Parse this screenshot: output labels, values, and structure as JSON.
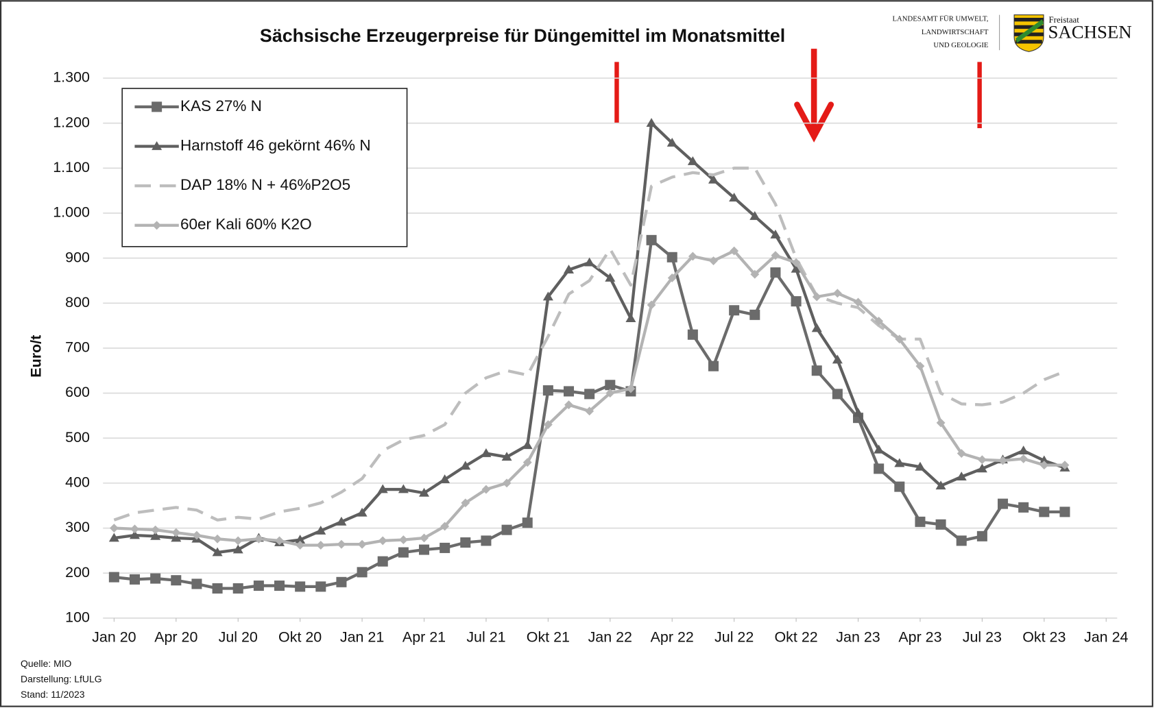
{
  "chart_data": {
    "type": "line",
    "title": "Sächsische Erzeugerpreise für Düngemittel im Monatsmittel",
    "y_label": "Euro/t",
    "x": [
      "2020-01",
      "2020-02",
      "2020-03",
      "2020-04",
      "2020-05",
      "2020-06",
      "2020-07",
      "2020-08",
      "2020-09",
      "2020-10",
      "2020-11",
      "2020-12",
      "2021-01",
      "2021-02",
      "2021-03",
      "2021-04",
      "2021-05",
      "2021-06",
      "2021-07",
      "2021-08",
      "2021-09",
      "2021-10",
      "2021-11",
      "2021-12",
      "2022-01",
      "2022-02",
      "2022-03",
      "2022-04",
      "2022-05",
      "2022-06",
      "2022-07",
      "2022-08",
      "2022-09",
      "2022-10",
      "2022-11",
      "2022-12",
      "2023-01",
      "2023-02",
      "2023-03",
      "2023-04",
      "2023-05",
      "2023-06",
      "2023-07",
      "2023-08",
      "2023-09",
      "2023-10",
      "2023-11"
    ],
    "xlim": [
      "2020-01",
      "2024-01"
    ],
    "xticks": [
      {
        "value": "2020-01",
        "label": "Jan 20"
      },
      {
        "value": "2020-04",
        "label": "Apr 20"
      },
      {
        "value": "2020-07",
        "label": "Jul 20"
      },
      {
        "value": "2020-10",
        "label": "Okt 20"
      },
      {
        "value": "2021-01",
        "label": "Jan 21"
      },
      {
        "value": "2021-04",
        "label": "Apr 21"
      },
      {
        "value": "2021-07",
        "label": "Jul 21"
      },
      {
        "value": "2021-10",
        "label": "Okt 21"
      },
      {
        "value": "2022-01",
        "label": "Jan 22"
      },
      {
        "value": "2022-04",
        "label": "Apr 22"
      },
      {
        "value": "2022-07",
        "label": "Jul 22"
      },
      {
        "value": "2022-10",
        "label": "Okt 22"
      },
      {
        "value": "2023-01",
        "label": "Jan 23"
      },
      {
        "value": "2023-04",
        "label": "Apr 23"
      },
      {
        "value": "2023-07",
        "label": "Jul 23"
      },
      {
        "value": "2023-10",
        "label": "Okt 23"
      },
      {
        "value": "2024-01",
        "label": "Jan 24"
      }
    ],
    "ylim": [
      100,
      1300
    ],
    "yticks": [
      100,
      200,
      300,
      400,
      500,
      600,
      700,
      800,
      900,
      {
        "value": 1000,
        "label": "1.000"
      },
      {
        "value": 1100,
        "label": "1.100"
      },
      {
        "value": 1200,
        "label": "1.200"
      },
      {
        "value": 1300,
        "label": "1.300"
      }
    ],
    "grid": true,
    "legend": "upper left",
    "series": [
      {
        "name": "KAS 27% N",
        "color": "#6b6b6b",
        "marker": "square",
        "dashed": false,
        "values": [
          191,
          186,
          188,
          184,
          176,
          166,
          166,
          172,
          172,
          170,
          170,
          180,
          202,
          226,
          246,
          252,
          256,
          268,
          272,
          296,
          312,
          606,
          604,
          598,
          618,
          604,
          940,
          902,
          730,
          660,
          784,
          774,
          868,
          804,
          650,
          598,
          545,
          432,
          392,
          314,
          308,
          272,
          282,
          354,
          346,
          336,
          336
        ]
      },
      {
        "name": "Harnstoff 46 gekörnt 46% N",
        "color": "#5f5f5f",
        "marker": "triangle",
        "dashed": false,
        "values": [
          278,
          284,
          282,
          278,
          276,
          246,
          252,
          278,
          268,
          274,
          294,
          314,
          334,
          386,
          386,
          378,
          408,
          438,
          466,
          458,
          484,
          814,
          874,
          890,
          856,
          766,
          1200,
          1156,
          1115,
          1074,
          1034,
          993,
          952,
          876,
          744,
          674,
          556,
          474,
          444,
          436,
          394,
          414,
          432,
          452,
          472,
          450,
          434
        ]
      },
      {
        "name": "DAP 18% N + 46%P2O5",
        "color": "#bdbdbd",
        "marker": "none",
        "dashed": true,
        "values": [
          318,
          334,
          340,
          346,
          340,
          318,
          324,
          320,
          336,
          344,
          356,
          380,
          410,
          472,
          496,
          506,
          530,
          600,
          634,
          650,
          640,
          726,
          820,
          850,
          920,
          840,
          1060,
          1080,
          1090,
          1085,
          1100,
          1100,
          1020,
          900,
          816,
          800,
          790,
          750,
          720,
          720,
          600,
          576,
          574,
          580,
          600,
          630,
          648
        ]
      },
      {
        "name": "60er Kali 60% K2O",
        "color": "#b3b3b3",
        "marker": "diamond",
        "dashed": false,
        "values": [
          300,
          298,
          296,
          290,
          284,
          276,
          272,
          276,
          272,
          262,
          262,
          264,
          264,
          272,
          274,
          278,
          304,
          356,
          386,
          400,
          446,
          530,
          574,
          560,
          600,
          610,
          796,
          856,
          904,
          894,
          916,
          864,
          906,
          890,
          814,
          822,
          802,
          760,
          720,
          660,
          534,
          466,
          452,
          450,
          454,
          440,
          440
        ]
      }
    ]
  },
  "logo": {
    "agency": [
      "LANDESAMT FÜR UMWELT,",
      "LANDWIRTSCHAFT",
      "UND GEOLOGIE"
    ],
    "state_small": "Freistaat",
    "state": "SACHSEN"
  },
  "notes": [
    "Quelle: MIO",
    "Darstellung: LfULG",
    "Stand: 11/2023"
  ]
}
